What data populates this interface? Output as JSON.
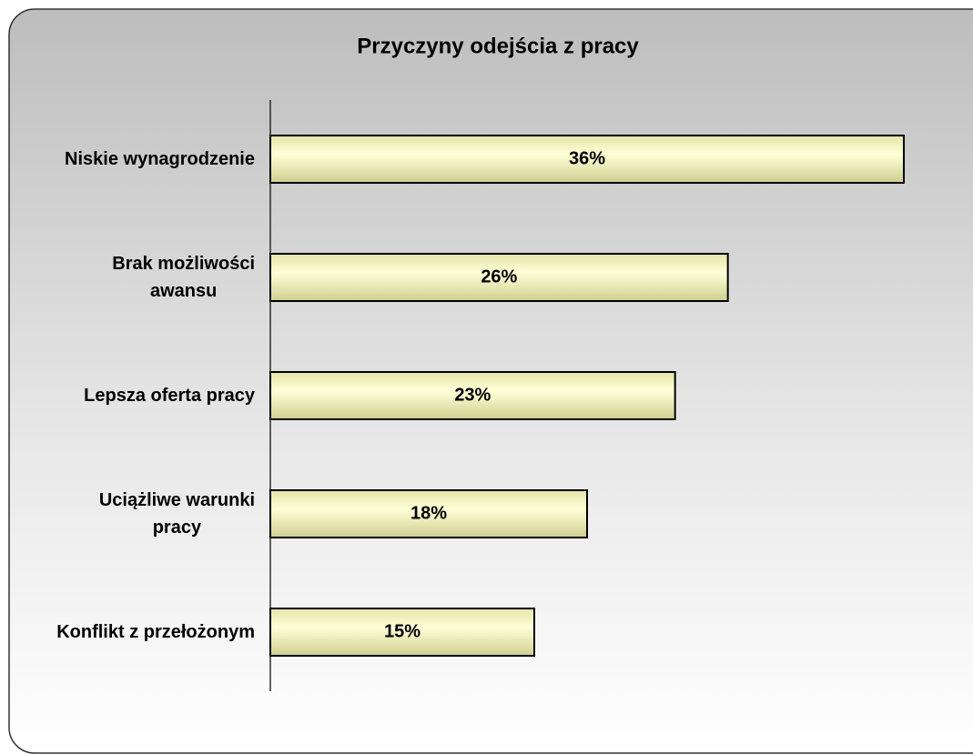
{
  "chart_data": {
    "type": "bar",
    "orientation": "horizontal",
    "title": "Przyczyny odejścia z pracy",
    "categories": [
      "Niskie wynagrodzenie",
      "Brak możliwości\nawansu",
      "Lepsza oferta pracy",
      "Uciążliwe warunki\npracy",
      "Konflikt z przełożonym"
    ],
    "values": [
      36,
      26,
      23,
      18,
      15
    ],
    "value_labels": [
      "36%",
      "26%",
      "23%",
      "18%",
      "15%"
    ],
    "color": "#f0f0b8"
  }
}
